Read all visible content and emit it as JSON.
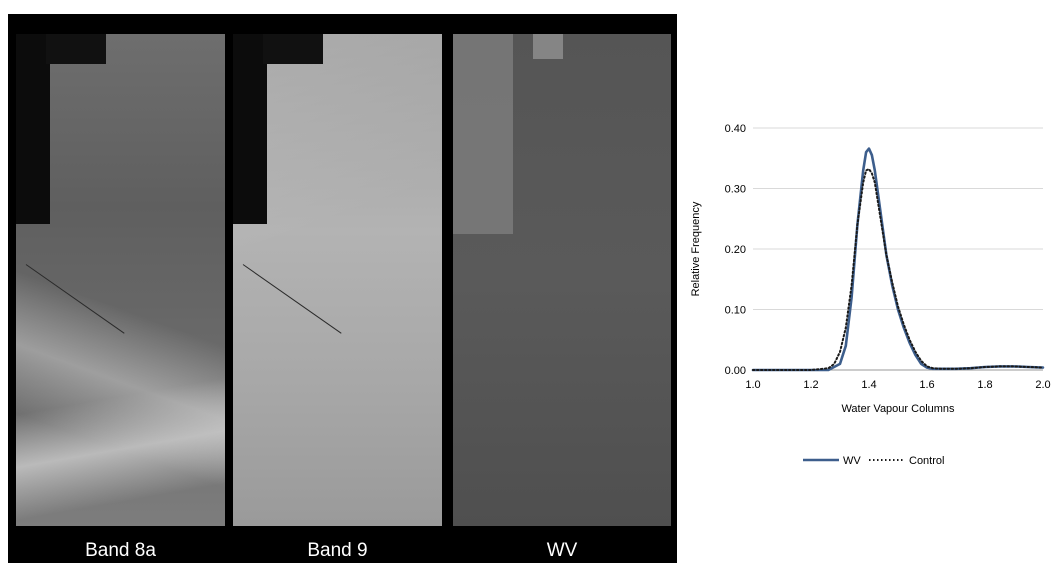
{
  "images": [
    {
      "label": "Band 8a"
    },
    {
      "label": "Band 9"
    },
    {
      "label": "WV"
    }
  ],
  "chart_data": {
    "type": "line",
    "title": "",
    "xlabel": "Water Vapour Columns",
    "ylabel": "Relative Frequency",
    "xlim": [
      1.0,
      2.0
    ],
    "ylim": [
      0.0,
      0.4
    ],
    "xticks": [
      "1.0",
      "1.2",
      "1.4",
      "1.6",
      "1.8",
      "2.0"
    ],
    "yticks": [
      "0.00",
      "0.10",
      "0.20",
      "0.30",
      "0.40"
    ],
    "grid": "horizontal",
    "legend": "bottom",
    "series": [
      {
        "name": "WV",
        "color": "#3d5e8c",
        "style": "solid",
        "x": [
          1.0,
          1.2,
          1.26,
          1.3,
          1.32,
          1.34,
          1.36,
          1.38,
          1.39,
          1.4,
          1.41,
          1.42,
          1.44,
          1.46,
          1.48,
          1.5,
          1.52,
          1.54,
          1.56,
          1.58,
          1.6,
          1.62,
          1.65,
          1.7,
          1.75,
          1.8,
          1.85,
          1.9,
          1.95,
          2.0
        ],
        "values": [
          0.0,
          0.0,
          0.0,
          0.01,
          0.04,
          0.12,
          0.24,
          0.33,
          0.36,
          0.366,
          0.355,
          0.33,
          0.26,
          0.19,
          0.14,
          0.1,
          0.07,
          0.045,
          0.025,
          0.01,
          0.004,
          0.002,
          0.002,
          0.002,
          0.003,
          0.005,
          0.006,
          0.006,
          0.005,
          0.004
        ]
      },
      {
        "name": "Control",
        "color": "#1a1a1a",
        "style": "dotted",
        "x": [
          1.0,
          1.2,
          1.26,
          1.28,
          1.3,
          1.32,
          1.34,
          1.36,
          1.38,
          1.39,
          1.4,
          1.41,
          1.42,
          1.44,
          1.46,
          1.48,
          1.5,
          1.52,
          1.54,
          1.56,
          1.58,
          1.6,
          1.62,
          1.65,
          1.7,
          1.75,
          1.8,
          1.85,
          1.9,
          1.95,
          2.0
        ],
        "values": [
          0.0,
          0.0,
          0.003,
          0.01,
          0.03,
          0.07,
          0.14,
          0.24,
          0.31,
          0.33,
          0.332,
          0.325,
          0.31,
          0.25,
          0.19,
          0.145,
          0.105,
          0.075,
          0.05,
          0.03,
          0.015,
          0.006,
          0.003,
          0.002,
          0.002,
          0.003,
          0.005,
          0.006,
          0.006,
          0.005,
          0.004
        ]
      }
    ]
  }
}
